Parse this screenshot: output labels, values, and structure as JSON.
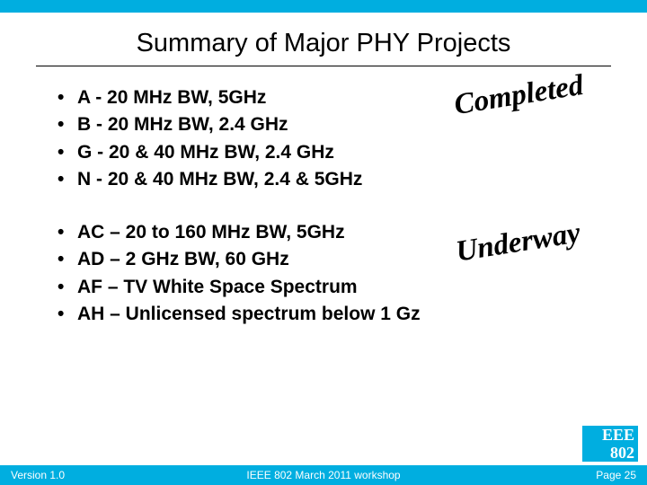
{
  "slide": {
    "title": "Summary of Major PHY Projects",
    "top_bar_color": "#00aee0",
    "background_color": "#ffffff"
  },
  "group1": {
    "items": [
      "A - 20 MHz BW, 5GHz",
      "B - 20 MHz BW, 2.4 GHz",
      "G - 20 & 40 MHz BW, 2.4 GHz",
      "N - 20 & 40 MHz BW, 2.4 & 5GHz"
    ],
    "stamp": "Completed"
  },
  "group2": {
    "items": [
      "AC – 20 to 160 MHz BW, 5GHz",
      "AD – 2 GHz BW, 60 GHz",
      "AF – TV White Space Spectrum",
      "AH – Unlicensed spectrum below 1 Gz"
    ],
    "stamp": "Underway"
  },
  "logo": {
    "line1": "EEE",
    "line2": "802"
  },
  "footer": {
    "left": "Version 1.0",
    "center": "IEEE 802 March 2011 workshop",
    "right": "Page 25"
  },
  "style": {
    "title_fontsize": 29,
    "bullet_fontsize": 21,
    "bullet_fontweight": "bold",
    "stamp_fontsize": 33,
    "stamp_rotation_deg": -9,
    "footer_fontsize": 12,
    "accent_color": "#00aee0",
    "text_color": "#000000"
  }
}
